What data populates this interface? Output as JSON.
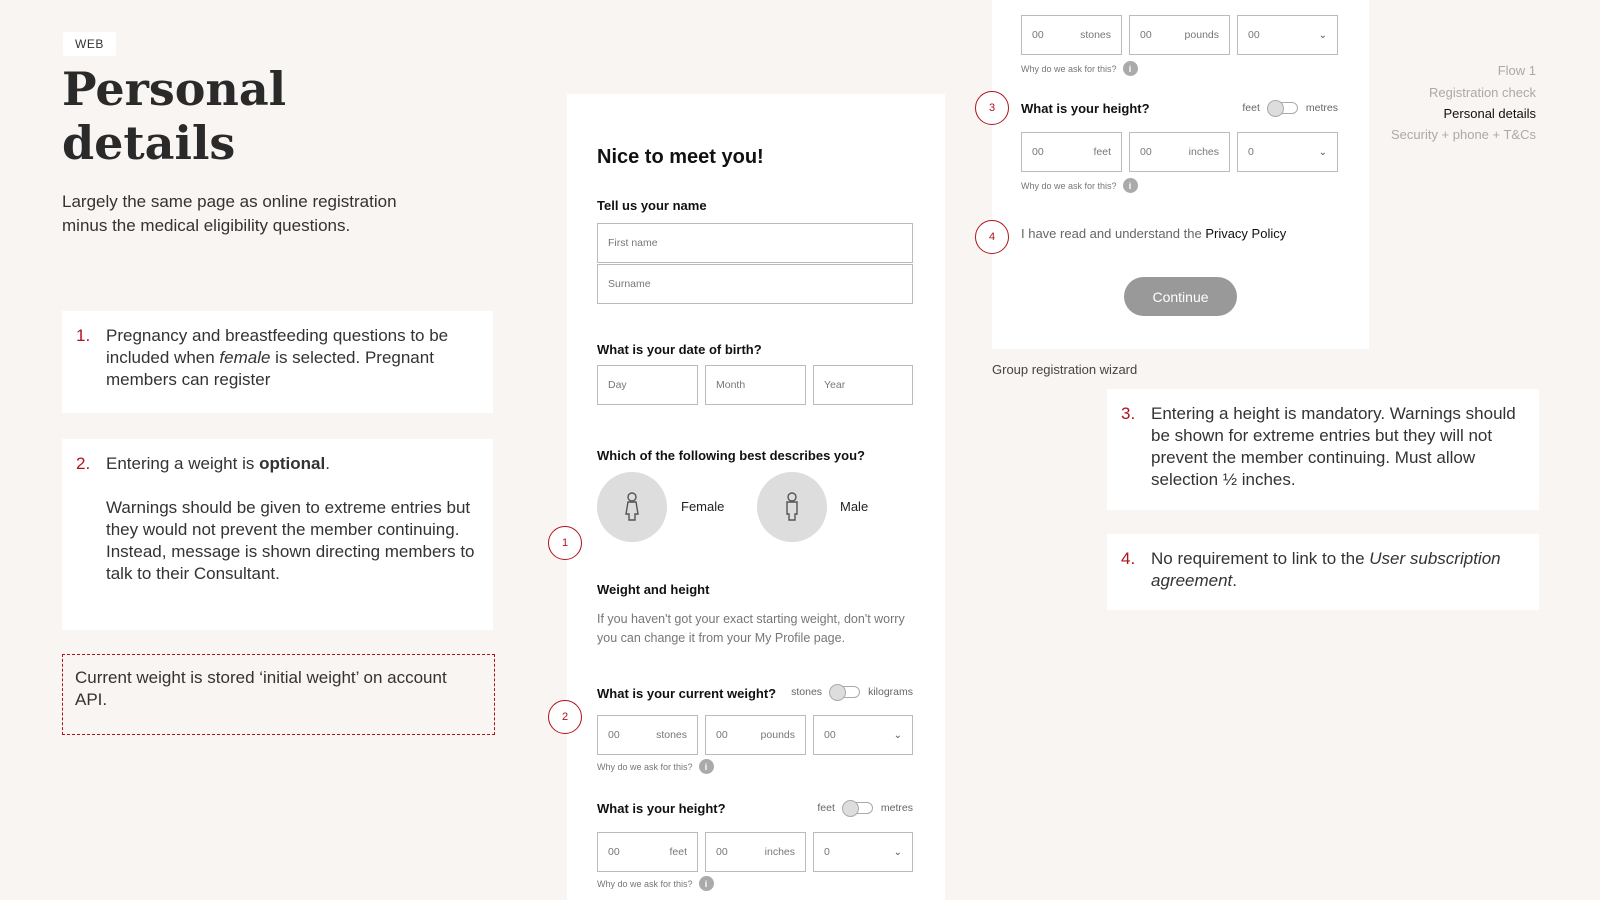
{
  "badge": "WEB",
  "title": "Personal details",
  "subtitle": "Largely the same page as online registration minus the medical eligibility questions.",
  "notes": [
    {
      "num": "1.",
      "pre": "Pregnancy and breastfeeding questions to be included when ",
      "em": "female",
      "post": " is selected. Pregnant members can register"
    },
    {
      "num": "2.",
      "pre": "Entering a weight is ",
      "strong": "optional",
      "post": ".",
      "para2": "Warnings should be given to extreme entries but they would not prevent the member continuing. Instead, message is shown directing members to talk to their Consultant."
    },
    {
      "num": "3.",
      "text": "Entering a height is mandatory. Warnings should be shown for extreme entries but they will not prevent the member continuing. Must allow selection ½ inches."
    },
    {
      "num": "4.",
      "pre": "No requirement to link to the ",
      "em": "User subscription agreement",
      "post": "."
    }
  ],
  "api_note": "Current weight is stored ‘initial weight’ on account API.",
  "flow": {
    "title": "Flow 1",
    "steps": [
      "Registration check",
      "Personal details",
      "Security + phone + T&Cs"
    ],
    "active": 1
  },
  "caption": "Group registration wizard",
  "form": {
    "heading": "Nice to meet you!",
    "name_label": "Tell us your name",
    "first_name_placeholder": "First name",
    "surname_placeholder": "Surname",
    "dob_label": "What is your date of birth?",
    "dob": [
      "Day",
      "Month",
      "Year"
    ],
    "gender_label": "Which of the following best describes you?",
    "genders": [
      "Female",
      "Male"
    ],
    "wh_title": "Weight and height",
    "wh_text": "If you haven't got your exact starting weight, don't worry you can change it from your My Profile page.",
    "weight_label": "What is your current weight?",
    "weight_toggle": [
      "stones",
      "kilograms"
    ],
    "weight_fields": [
      {
        "value": "00",
        "unit": "stones"
      },
      {
        "value": "00",
        "unit": "pounds"
      },
      {
        "value": "00"
      }
    ],
    "why": "Why do we ask for this?",
    "height_label": "What is your height?",
    "height_toggle": [
      "feet",
      "metres"
    ],
    "height_fields": [
      {
        "value": "00",
        "unit": "feet"
      },
      {
        "value": "00",
        "unit": "inches"
      },
      {
        "value": "0"
      }
    ],
    "privacy_pre": "I have read and understand the ",
    "privacy_link": "Privacy Policy",
    "continue": "Continue"
  },
  "markers": [
    "1",
    "2",
    "3",
    "4"
  ],
  "colors": {
    "accent": "#b0121b",
    "background": "#f8f5f2"
  }
}
